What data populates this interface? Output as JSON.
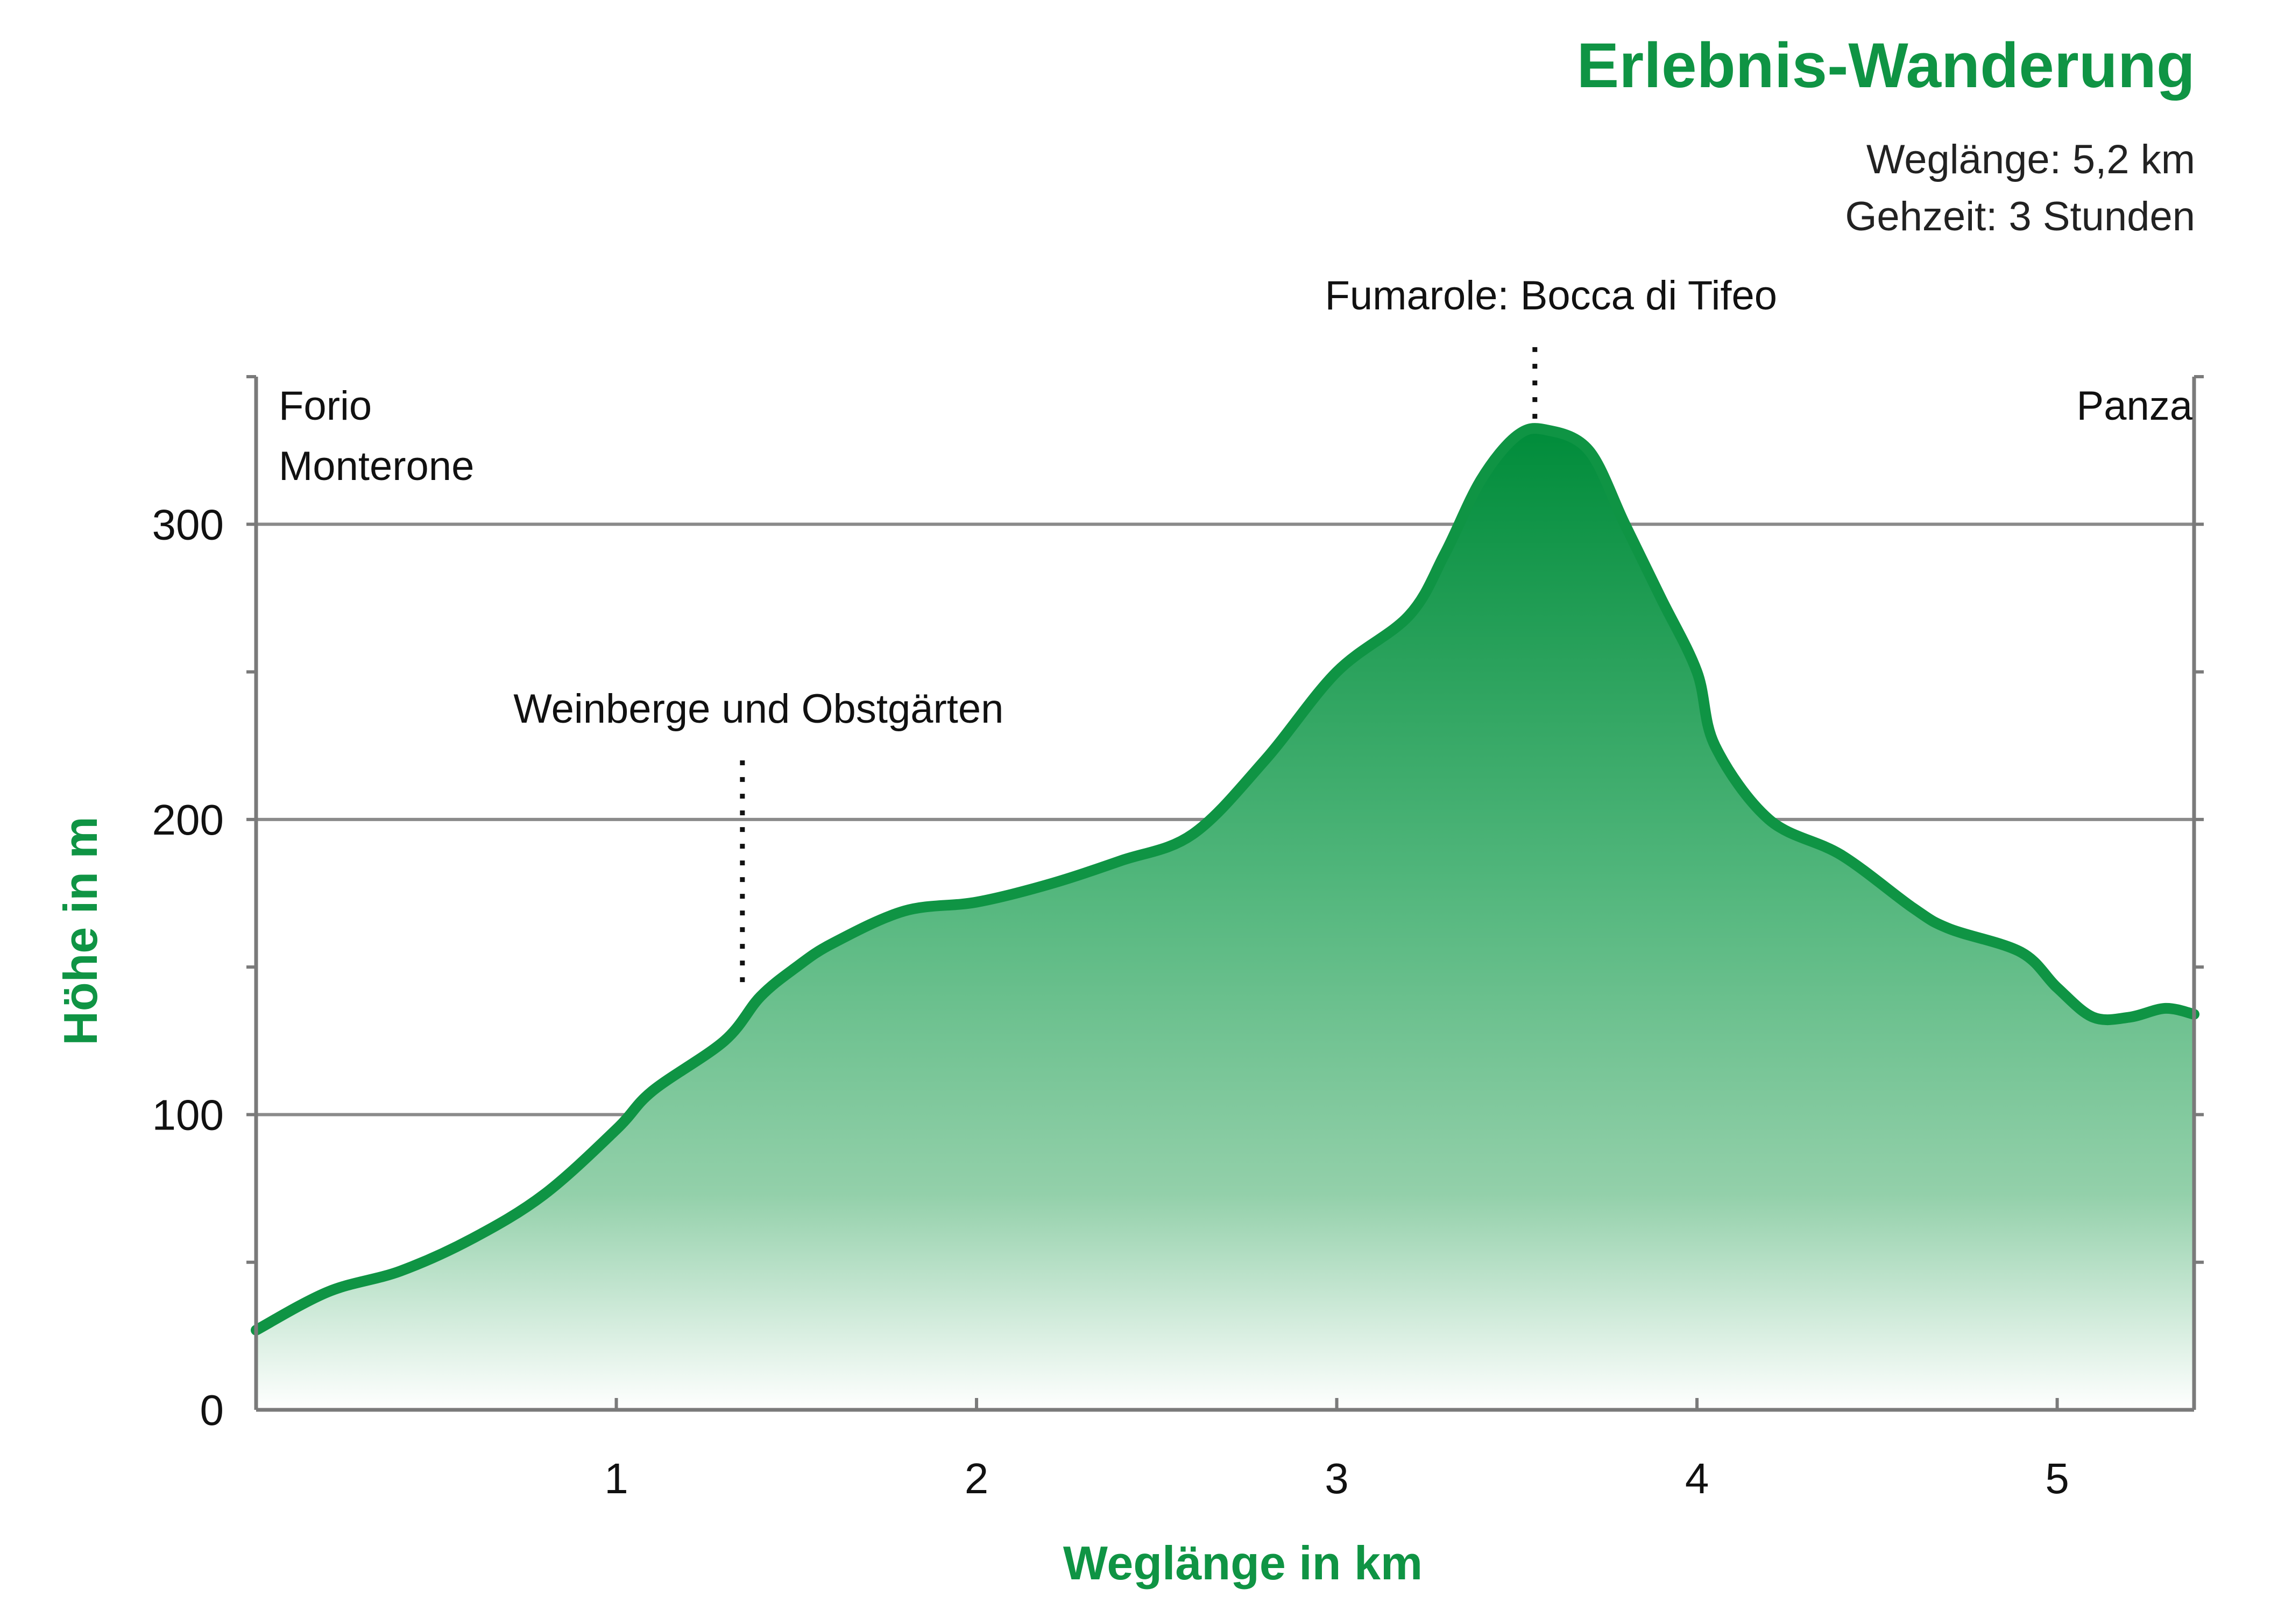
{
  "header": {
    "title": "Erlebnis-Wanderung",
    "info_line1": "Weglänge: 5,2 km",
    "info_line2": "Gehzeit: 3 Stunden"
  },
  "colors": {
    "accent": "#0f9444",
    "grid": "#8a8a8a",
    "axis": "#7a7a7a",
    "fill_top": "#008c3a",
    "fill_bottom": "#ffffff"
  },
  "chart_data": {
    "type": "area",
    "xlabel": "Weglänge in km",
    "ylabel": "Höhe in m",
    "xlim": [
      0,
      5.38
    ],
    "ylim": [
      0,
      350
    ],
    "x_ticks": [
      1,
      2,
      3,
      4,
      5
    ],
    "y_ticks": [
      0,
      100,
      200,
      300
    ],
    "y_minor_ticks": [
      50,
      150,
      250,
      350
    ],
    "grid_lines_y": [
      100,
      200,
      300
    ],
    "series": [
      {
        "points": [
          [
            0,
            27
          ],
          [
            0.2,
            40
          ],
          [
            0.4,
            47
          ],
          [
            0.6,
            58
          ],
          [
            0.8,
            73
          ],
          [
            1.0,
            95
          ],
          [
            1.1,
            108
          ],
          [
            1.3,
            125
          ],
          [
            1.4,
            140
          ],
          [
            1.5,
            150
          ],
          [
            1.6,
            158
          ],
          [
            1.8,
            169
          ],
          [
            2.0,
            172
          ],
          [
            2.2,
            178
          ],
          [
            2.4,
            186
          ],
          [
            2.6,
            195
          ],
          [
            2.8,
            220
          ],
          [
            3.0,
            250
          ],
          [
            3.2,
            269
          ],
          [
            3.3,
            290
          ],
          [
            3.4,
            315
          ],
          [
            3.5,
            330
          ],
          [
            3.58,
            332
          ],
          [
            3.7,
            325
          ],
          [
            3.8,
            300
          ],
          [
            3.9,
            275
          ],
          [
            4.0,
            250
          ],
          [
            4.05,
            225
          ],
          [
            4.2,
            200
          ],
          [
            4.4,
            188
          ],
          [
            4.6,
            170
          ],
          [
            4.7,
            163
          ],
          [
            4.9,
            155
          ],
          [
            5.0,
            143
          ],
          [
            5.1,
            133
          ],
          [
            5.2,
            133
          ],
          [
            5.3,
            136
          ],
          [
            5.38,
            134
          ]
        ]
      }
    ],
    "annotations": [
      {
        "label": "Weinberge und Obstgärten",
        "x": 1.35,
        "marker_from": 142,
        "marker_to": 220
      },
      {
        "label": "Fumarole: Bocca di Tifeo",
        "x": 3.55,
        "marker_from": 333,
        "marker_to": 360
      }
    ],
    "start_labels": [
      "Forio",
      "Monterone"
    ],
    "end_label": "Panza"
  }
}
